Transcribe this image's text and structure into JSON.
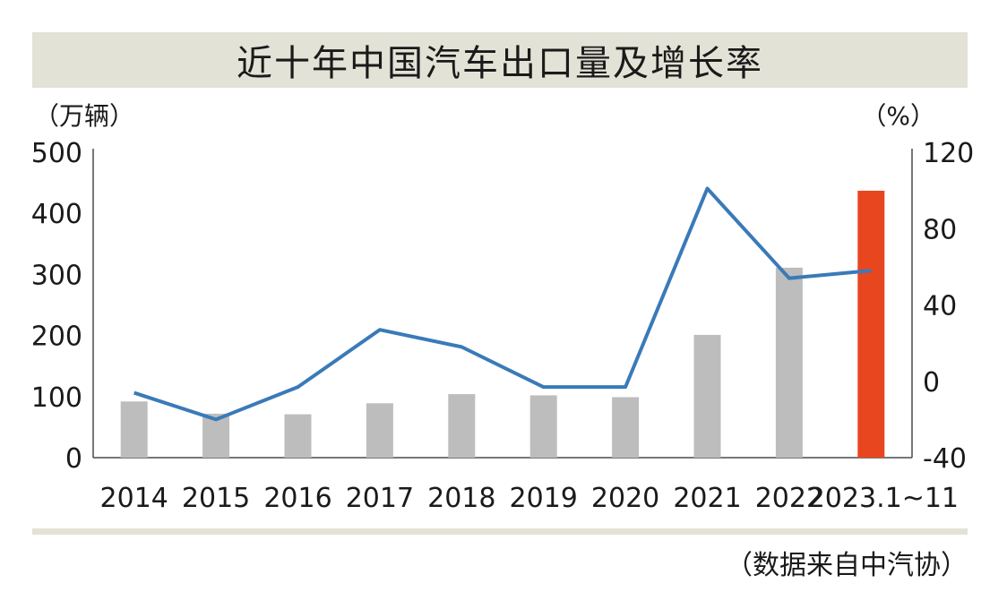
{
  "chart_data": {
    "type": "bar",
    "title": "近十年中国汽车出口量及增长率",
    "y_left_unit": "（万辆）",
    "y_right_unit": "（%）",
    "source": "（数据来自中汽协）",
    "categories": [
      "2014",
      "2015",
      "2016",
      "2017",
      "2018",
      "2019",
      "2020",
      "2021",
      "2022",
      "2023.1~11"
    ],
    "series": [
      {
        "type": "bar",
        "axis": "left",
        "values": [
          92,
          72,
          71,
          89,
          104,
          102,
          99,
          201,
          311,
          437
        ],
        "colors": [
          "#bdbdbd",
          "#bdbdbd",
          "#bdbdbd",
          "#bdbdbd",
          "#bdbdbd",
          "#bdbdbd",
          "#bdbdbd",
          "#bdbdbd",
          "#bdbdbd",
          "#e8461f"
        ]
      },
      {
        "type": "line",
        "axis": "right",
        "values": [
          -6,
          -20,
          -3,
          27,
          18,
          -3,
          -3,
          101,
          54,
          58
        ],
        "color": "#3a7ab8"
      }
    ],
    "y_left": {
      "min": 0,
      "max": 500,
      "ticks": [
        "0",
        "100",
        "200",
        "300",
        "400",
        "500"
      ]
    },
    "y_right": {
      "min": -40,
      "max": 120,
      "ticks": [
        "-40",
        "0",
        "40",
        "80",
        "120"
      ]
    },
    "grid": false,
    "legend": "none"
  }
}
